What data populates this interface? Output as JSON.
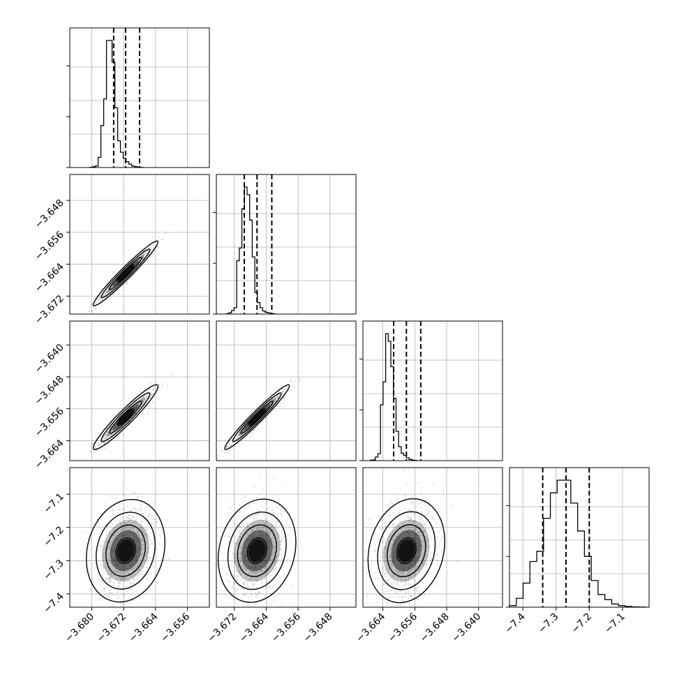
{
  "chart_data": {
    "type": "corner",
    "n_params": 4,
    "params": [
      {
        "index": 0,
        "range": [
          -3.6855,
          -3.6505
        ],
        "ticks": [
          -3.68,
          -3.672,
          -3.664,
          -3.656
        ],
        "tick_labels": [
          "−3.680",
          "−3.672",
          "−3.664",
          "−3.656"
        ]
      },
      {
        "index": 1,
        "range": [
          -3.6765,
          -3.6415
        ],
        "ticks": [
          -3.672,
          -3.664,
          -3.656,
          -3.648
        ],
        "tick_labels": [
          "−3.672",
          "−3.664",
          "−3.656",
          "−3.648"
        ]
      },
      {
        "index": 2,
        "range": [
          -3.669,
          -3.634
        ],
        "ticks": [
          -3.664,
          -3.656,
          -3.648,
          -3.64
        ],
        "tick_labels": [
          "−3.664",
          "−3.656",
          "−3.648",
          "−3.640"
        ]
      },
      {
        "index": 3,
        "range": [
          -7.44,
          -7.02
        ],
        "ticks": [
          -7.4,
          -7.3,
          -7.2,
          -7.1
        ],
        "tick_labels": [
          "−7.4",
          "−7.3",
          "−7.2",
          "−7.1"
        ]
      }
    ],
    "histograms": [
      {
        "param": 0,
        "bin_start": -3.6805,
        "bin_width": 0.0007,
        "counts": [
          2,
          6,
          12,
          80,
          330,
          540,
          1000,
          1000,
          830,
          470,
          210,
          120,
          72,
          45,
          26,
          12,
          7,
          3,
          1
        ],
        "quantiles": [
          -3.6745,
          -3.6715,
          -3.668
        ]
      },
      {
        "param": 1,
        "bin_start": -3.674,
        "bin_width": 0.00065,
        "counts": [
          3,
          10,
          28,
          50,
          420,
          520,
          830,
          1000,
          940,
          740,
          450,
          170,
          90,
          50,
          24,
          14,
          9,
          4,
          1
        ],
        "quantiles": [
          -3.6695,
          -3.6663,
          -3.6626
        ]
      },
      {
        "param": 2,
        "bin_start": -3.6672,
        "bin_width": 0.00065,
        "counts": [
          3,
          6,
          28,
          55,
          440,
          620,
          1000,
          940,
          740,
          490,
          230,
          110,
          58,
          40,
          22,
          10,
          5,
          2
        ],
        "quantiles": [
          -3.6613,
          -3.6581,
          -3.6545
        ]
      },
      {
        "param": 3,
        "bin_start": -7.44,
        "bin_width": 0.0205,
        "counts": [
          12,
          70,
          190,
          360,
          440,
          700,
          900,
          1000,
          1000,
          820,
          600,
          400,
          210,
          100,
          60,
          25,
          12,
          6,
          2,
          1
        ],
        "quantiles": [
          -7.34,
          -7.27,
          -7.2
        ]
      }
    ],
    "pairs": [
      {
        "x": 0,
        "y": 1,
        "mean": [
          -3.6715,
          -3.6663
        ],
        "sd": [
          0.0028,
          0.0028
        ],
        "corr": 0.97
      },
      {
        "x": 0,
        "y": 2,
        "mean": [
          -3.6715,
          -3.6581
        ],
        "sd": [
          0.0028,
          0.0028
        ],
        "corr": 0.95
      },
      {
        "x": 1,
        "y": 2,
        "mean": [
          -3.6663,
          -3.6581
        ],
        "sd": [
          0.0028,
          0.0028
        ],
        "corr": 0.97
      },
      {
        "x": 0,
        "y": 3,
        "mean": [
          -3.6715,
          -7.27
        ],
        "sd": [
          0.0028,
          0.058
        ],
        "corr": 0.3
      },
      {
        "x": 1,
        "y": 3,
        "mean": [
          -3.6663,
          -7.27
        ],
        "sd": [
          0.0028,
          0.058
        ],
        "corr": 0.32
      },
      {
        "x": 2,
        "y": 3,
        "mean": [
          -3.6581,
          -7.27
        ],
        "sd": [
          0.0028,
          0.058
        ],
        "corr": 0.34
      }
    ],
    "contour_levels_sigma": [
      0.5,
      1.0,
      1.5,
      2.0
    ],
    "grid": true,
    "title": "",
    "xlabel": "",
    "ylabel": ""
  }
}
